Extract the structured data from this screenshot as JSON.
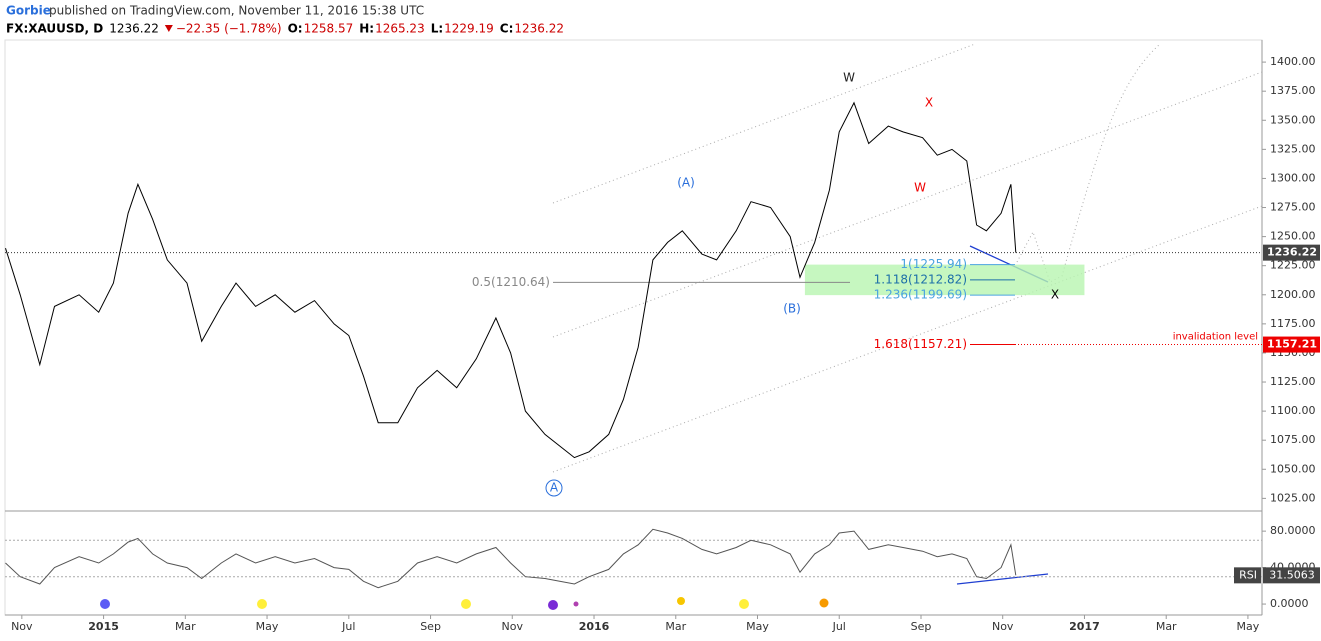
{
  "header": {
    "author": "Gorbie",
    "published": "published on TradingView.com, November 11, 2016 15:38 UTC",
    "symbol": "FX:XAUUSD, D",
    "last": "1236.22",
    "change": "−22.35 (−1.78%)",
    "open_label": "O:",
    "open": "1258.57",
    "high_label": "H:",
    "high": "1265.23",
    "low_label": "L:",
    "low": "1229.19",
    "close_label": "C:",
    "close": "1236.22"
  },
  "chart_data": [
    {
      "type": "line",
      "color": "#000000",
      "x": [
        2014.8,
        2014.83,
        2014.87,
        2014.9,
        2014.95,
        2014.99,
        2015.02,
        2015.05,
        2015.07,
        2015.1,
        2015.13,
        2015.17,
        2015.2,
        2015.24,
        2015.27,
        2015.31,
        2015.35,
        2015.39,
        2015.43,
        2015.47,
        2015.5,
        2015.53,
        2015.56,
        2015.6,
        2015.64,
        2015.68,
        2015.72,
        2015.76,
        2015.8,
        2015.83,
        2015.86,
        2015.9,
        2015.93,
        2015.96,
        2015.99,
        2016.03,
        2016.06,
        2016.09,
        2016.12,
        2016.15,
        2016.18,
        2016.22,
        2016.25,
        2016.29,
        2016.32,
        2016.36,
        2016.4,
        2016.42,
        2016.45,
        2016.48,
        2016.5,
        2016.53,
        2016.56,
        2016.6,
        2016.63,
        2016.67,
        2016.7,
        2016.73,
        2016.76,
        2016.78,
        2016.8,
        2016.83,
        2016.85,
        2016.86
      ],
      "values": [
        1240,
        1200,
        1140,
        1190,
        1200,
        1185,
        1210,
        1270,
        1295,
        1265,
        1230,
        1210,
        1160,
        1190,
        1210,
        1190,
        1200,
        1185,
        1195,
        1175,
        1165,
        1130,
        1090,
        1090,
        1120,
        1135,
        1120,
        1145,
        1180,
        1150,
        1100,
        1080,
        1070,
        1060,
        1065,
        1080,
        1110,
        1155,
        1230,
        1245,
        1255,
        1235,
        1230,
        1255,
        1280,
        1275,
        1250,
        1215,
        1245,
        1290,
        1340,
        1365,
        1330,
        1345,
        1340,
        1335,
        1320,
        1325,
        1315,
        1260,
        1255,
        1270,
        1295,
        1236.22
      ],
      "xlim": [
        2014.799,
        2017.362
      ],
      "ylim": [
        1015,
        1419
      ],
      "xticks": [
        {
          "value": 2014.8333,
          "label": "Nov"
        },
        {
          "value": 2015.0,
          "label": "2015"
        },
        {
          "value": 2015.1667,
          "label": "Mar"
        },
        {
          "value": 2015.3333,
          "label": "May"
        },
        {
          "value": 2015.5,
          "label": "Jul"
        },
        {
          "value": 2015.6667,
          "label": "Sep"
        },
        {
          "value": 2015.8333,
          "label": "Nov"
        },
        {
          "value": 2016.0,
          "label": "2016"
        },
        {
          "value": 2016.1667,
          "label": "Mar"
        },
        {
          "value": 2016.3333,
          "label": "May"
        },
        {
          "value": 2016.5,
          "label": "Jul"
        },
        {
          "value": 2016.6667,
          "label": "Sep"
        },
        {
          "value": 2016.8333,
          "label": "Nov"
        },
        {
          "value": 2017.0,
          "label": "2017"
        },
        {
          "value": 2017.1667,
          "label": "Mar"
        },
        {
          "value": 2017.3333,
          "label": "May"
        }
      ],
      "yticks": [
        {
          "value": 1025,
          "label": "1025.00"
        },
        {
          "value": 1050,
          "label": "1050.00"
        },
        {
          "value": 1075,
          "label": "1075.00"
        },
        {
          "value": 1100,
          "label": "1100.00"
        },
        {
          "value": 1125,
          "label": "1125.00"
        },
        {
          "value": 1150,
          "label": "1150.00"
        },
        {
          "value": 1175,
          "label": "1175.00"
        },
        {
          "value": 1200,
          "label": "1200.00"
        },
        {
          "value": 1225,
          "label": "1225.00"
        },
        {
          "value": 1250,
          "label": "1250.00"
        },
        {
          "value": 1275,
          "label": "1275.00"
        },
        {
          "value": 1300,
          "label": "1300.00"
        },
        {
          "value": 1325,
          "label": "1325.00"
        },
        {
          "value": 1350,
          "label": "1350.00"
        },
        {
          "value": 1375,
          "label": "1375.00"
        },
        {
          "value": 1400,
          "label": "1400.00"
        }
      ],
      "last_price": {
        "value": 1236.22,
        "label": "1236.22"
      },
      "invalidation": {
        "value": 1157.21,
        "label": "1157.21",
        "text": "invalidation level"
      },
      "fib_levels": [
        {
          "value": 1210.64,
          "label": "0.5(1210.64)"
        },
        {
          "value": 1225.94,
          "label": "1(1225.94)"
        },
        {
          "value": 1212.82,
          "label": "1.118(1212.82)"
        },
        {
          "value": 1199.69,
          "label": "1.236(1199.69)"
        },
        {
          "value": 1157.21,
          "label": "1.618(1157.21)"
        }
      ],
      "annotations": [
        "W",
        "X",
        "W",
        "(A)",
        "(B)",
        "A",
        "X"
      ]
    },
    {
      "type": "line",
      "title": "RSI",
      "color": "#555555",
      "x": [
        2014.8,
        2014.83,
        2014.87,
        2014.9,
        2014.95,
        2014.99,
        2015.02,
        2015.05,
        2015.07,
        2015.1,
        2015.13,
        2015.17,
        2015.2,
        2015.24,
        2015.27,
        2015.31,
        2015.35,
        2015.39,
        2015.43,
        2015.47,
        2015.5,
        2015.53,
        2015.56,
        2015.6,
        2015.64,
        2015.68,
        2015.72,
        2015.76,
        2015.8,
        2015.83,
        2015.86,
        2015.9,
        2015.93,
        2015.96,
        2015.99,
        2016.03,
        2016.06,
        2016.09,
        2016.12,
        2016.15,
        2016.18,
        2016.22,
        2016.25,
        2016.29,
        2016.32,
        2016.36,
        2016.4,
        2016.42,
        2016.45,
        2016.48,
        2016.5,
        2016.53,
        2016.56,
        2016.6,
        2016.63,
        2016.67,
        2016.7,
        2016.73,
        2016.76,
        2016.78,
        2016.8,
        2016.83,
        2016.85,
        2016.86
      ],
      "values": [
        45,
        30,
        22,
        40,
        52,
        45,
        55,
        68,
        72,
        55,
        45,
        40,
        28,
        45,
        55,
        45,
        52,
        45,
        50,
        40,
        38,
        25,
        18,
        25,
        45,
        52,
        45,
        55,
        62,
        45,
        30,
        28,
        25,
        22,
        30,
        38,
        55,
        65,
        82,
        78,
        72,
        60,
        55,
        62,
        70,
        65,
        55,
        35,
        55,
        65,
        78,
        80,
        60,
        65,
        62,
        58,
        52,
        55,
        50,
        30,
        28,
        40,
        65,
        31.5063
      ],
      "last_value": {
        "value": 31.5063,
        "label": "31.5063"
      },
      "ylim": [
        -12,
        101
      ],
      "yticks": [
        {
          "value": 0,
          "label": "0.0000"
        },
        {
          "value": 40,
          "label": "40.0000"
        },
        {
          "value": 80,
          "label": "80.0000"
        }
      ],
      "bands": [
        30,
        70
      ]
    }
  ]
}
